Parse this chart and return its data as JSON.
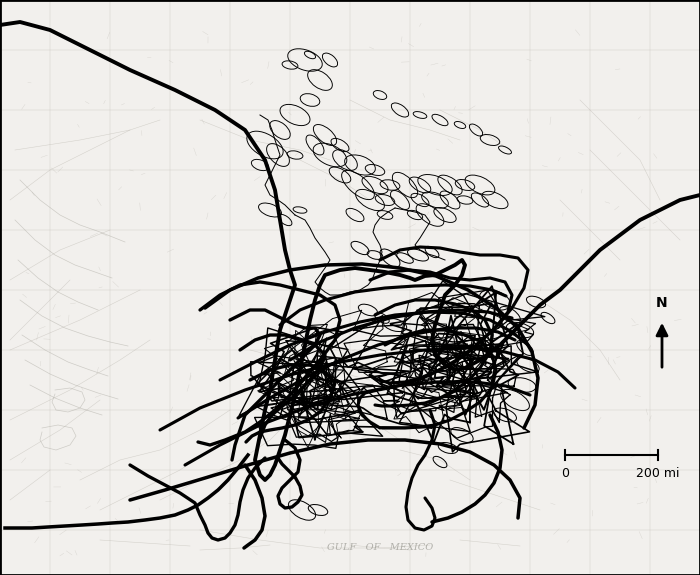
{
  "figsize": [
    7.0,
    5.75
  ],
  "dpi": 100,
  "background_color": "#f2f0ed",
  "border_color": "#000000",
  "glacier_color": "#000000",
  "glacier_lw": 2.8,
  "fish_color": "#000000",
  "fish_lw": 0.9,
  "scale_text_0": "0",
  "scale_text_200": "200 mi",
  "grid_color": "#c8c4bc",
  "grid_alpha": 0.7,
  "north_arrow_color": "#000000"
}
